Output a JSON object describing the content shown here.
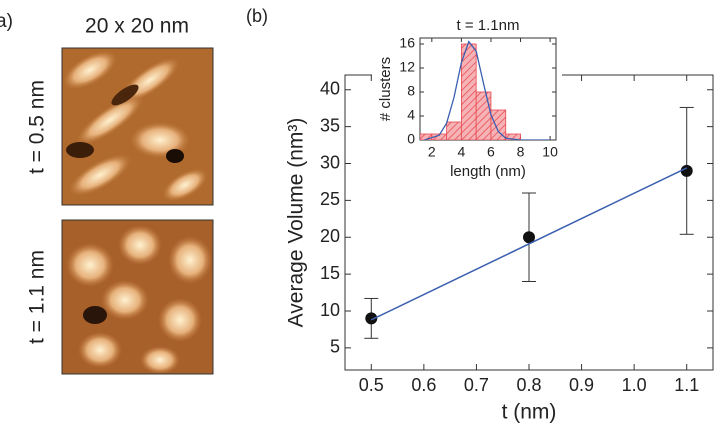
{
  "panel_a": {
    "label": "a)",
    "scale": "20 x 20 nm",
    "row_labels": [
      "t = 0.5 nm",
      "t = 1.1 nm"
    ]
  },
  "chart_data": [
    {
      "type": "scatter",
      "panel_label": "(b)",
      "x_label": "t (nm)",
      "y_label": "Average Volume (nm³)",
      "xlim": [
        0.45,
        1.15
      ],
      "ylim": [
        2,
        42
      ],
      "xticks": [
        0.5,
        0.6,
        0.7,
        0.8,
        0.9,
        {
          "value": 1.0,
          "label": "1.0"
        },
        1.1
      ],
      "yticks": [
        5,
        10,
        15,
        20,
        25,
        30,
        35,
        40
      ],
      "series": [
        {
          "type": "errorbar",
          "color": "#111111",
          "x": [
            0.5,
            0.8,
            1.1
          ],
          "values": [
            9,
            20,
            29
          ],
          "errors": [
            2.7,
            6,
            8.6
          ]
        },
        {
          "type": "line",
          "color": "#3b5fb0",
          "x": [
            0.5,
            1.1
          ],
          "values": [
            8.8,
            29.4
          ]
        }
      ]
    },
    {
      "type": "histogram",
      "title": "t = 1.1nm",
      "x_label": "length (nm)",
      "y_label": "# clusters",
      "xlim": [
        1.2,
        10.4
      ],
      "ylim": [
        0,
        17
      ],
      "xticks": [
        2,
        4,
        6,
        8,
        10
      ],
      "yticks": [
        0,
        4,
        8,
        12,
        16
      ],
      "bins": [
        1.2,
        2,
        3,
        4,
        5,
        6,
        7,
        8,
        9,
        10
      ],
      "values": [
        1,
        1,
        3,
        16,
        8,
        5,
        1,
        0,
        0
      ],
      "color": "#e8474f",
      "fit": {
        "color": "#3b5fb0",
        "x": [
          1.5,
          2.5,
          3,
          3.5,
          4,
          4.5,
          5,
          5.5,
          6,
          6.5,
          7,
          8,
          9,
          10
        ],
        "values": [
          0,
          0.8,
          2.8,
          7.1,
          12.9,
          16.4,
          14.8,
          9.4,
          4.2,
          1.4,
          0.3,
          0,
          0,
          0
        ]
      }
    }
  ]
}
